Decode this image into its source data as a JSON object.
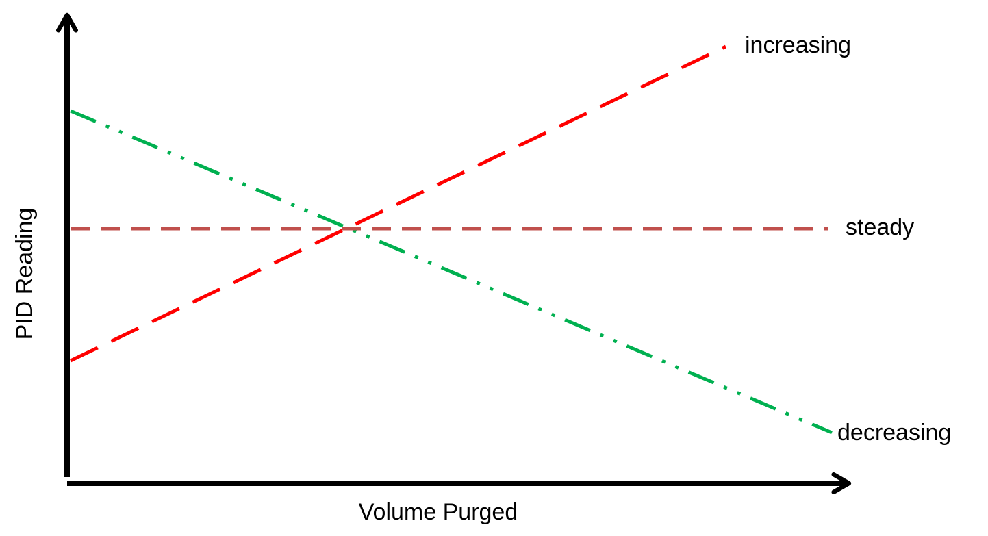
{
  "axes": {
    "y_label": "PID Reading",
    "x_label": "Volume Purged"
  },
  "lines": [
    {
      "label": "increasing"
    },
    {
      "label": "steady"
    },
    {
      "label": "decreasing"
    }
  ]
}
